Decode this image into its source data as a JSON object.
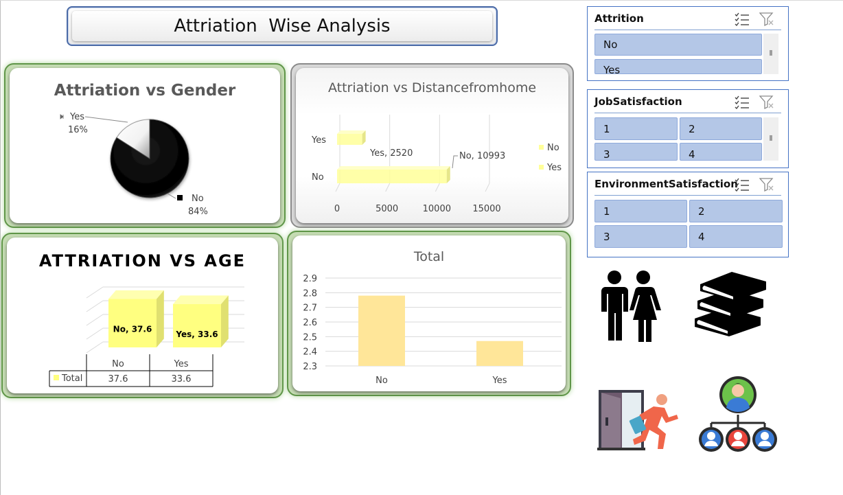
{
  "dashboard": {
    "title": "Attriation  Wise Analysis"
  },
  "chart_data": [
    {
      "type": "pie",
      "title": "Attriation vs Gender",
      "slices": [
        {
          "label": "No",
          "value": 84,
          "value_label": "84%",
          "color": "#000000"
        },
        {
          "label": "Yes",
          "value": 16,
          "value_label": "16%",
          "color": "#ffffff"
        }
      ]
    },
    {
      "type": "bar",
      "orientation": "horizontal",
      "title": "Attriation vs Distancefromhome",
      "categories": [
        "Yes",
        "No"
      ],
      "values": [
        2520,
        10993
      ],
      "data_labels": [
        "Yes, 2520",
        "No, 10993"
      ],
      "xlim": [
        0,
        15000
      ],
      "xticks": [
        "0",
        "5000",
        "10000",
        "15000"
      ],
      "legend": [
        "No",
        "Yes"
      ],
      "legend_position": "right",
      "color": "#ffff99"
    },
    {
      "type": "bar",
      "title": "ATTRIATION VS AGE",
      "categories": [
        "No",
        "Yes"
      ],
      "values": [
        37.6,
        33.6
      ],
      "data_labels": [
        "No, 37.6",
        "Yes, 33.6"
      ],
      "color": "#ffff80",
      "table": {
        "series_label": "Total",
        "values": [
          "37.6",
          "33.6"
        ]
      }
    },
    {
      "type": "bar",
      "title": "Total",
      "categories": [
        "No",
        "Yes"
      ],
      "values": [
        2.78,
        2.47
      ],
      "ylim": [
        2.3,
        2.9
      ],
      "yticks": [
        "2.9",
        "2.8",
        "2.7",
        "2.6",
        "2.5",
        "2.4",
        "2.3"
      ],
      "grid": true,
      "color": "#ffe699"
    }
  ],
  "slicers": {
    "attrition": {
      "title": "Attrition",
      "items": [
        "No",
        "Yes"
      ]
    },
    "job_satisfaction": {
      "title": "JobSatisfaction",
      "items": [
        "1",
        "2",
        "3",
        "4"
      ]
    },
    "environment_satisfaction": {
      "title": "EnvironmentSatisfaction",
      "items": [
        "1",
        "2",
        "3",
        "4"
      ]
    }
  },
  "icons": [
    "couple-icon",
    "books-icon",
    "exit-door-icon",
    "team-hierarchy-icon",
    "multi-select-icon",
    "clear-filter-icon"
  ]
}
